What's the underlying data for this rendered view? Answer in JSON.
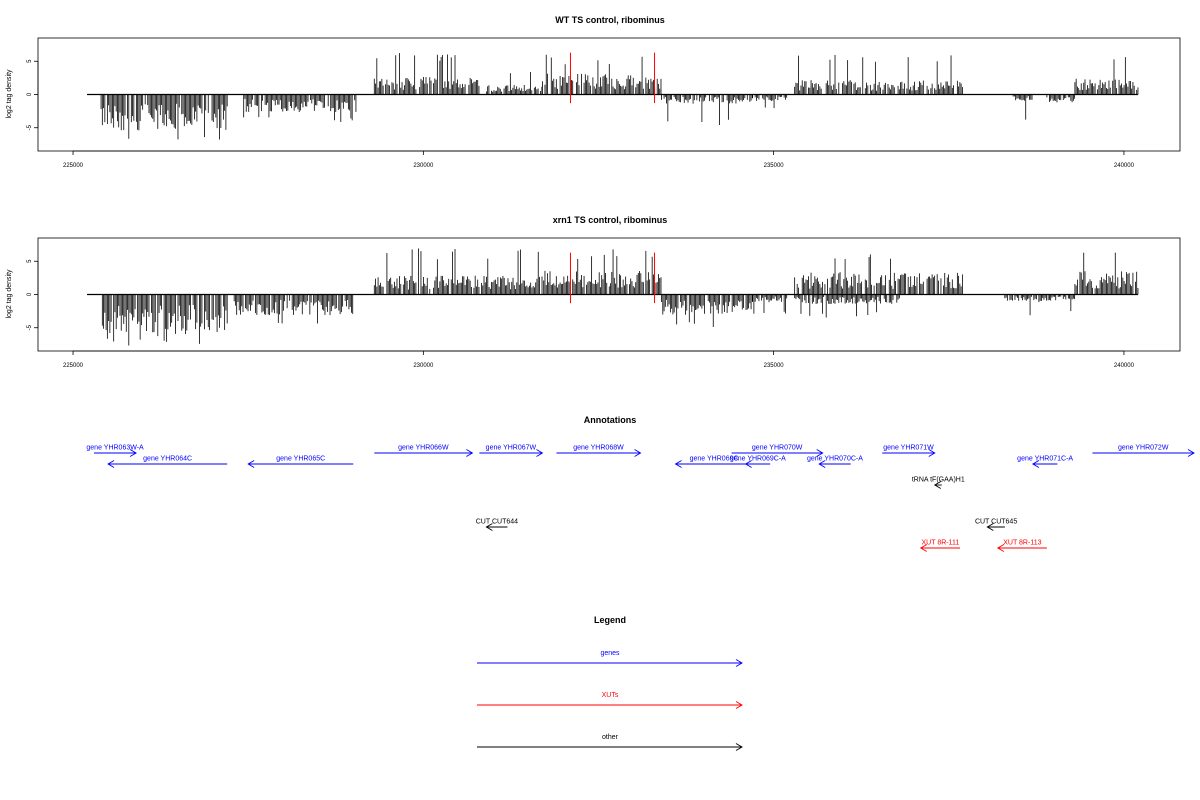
{
  "chart_data": [
    {
      "type": "bar",
      "title": "WT TS control, ribominus",
      "ylabel": "log2 tag density",
      "xlim": [
        224500,
        240800
      ],
      "ylim": [
        -8.5,
        8.5
      ],
      "x_ticks": [
        225000,
        230000,
        235000,
        240000
      ],
      "y_ticks": [
        -5,
        0,
        5
      ],
      "grid": false,
      "baseline": {
        "from": 225200,
        "to": 240200,
        "y": 0
      },
      "markers": [
        232100,
        233300
      ],
      "marker_color": "#ff0000",
      "bar_color": "#000000",
      "segments": [
        {
          "from": 225400,
          "to": 227200,
          "sign": -1,
          "typical": 4.5,
          "peak": 7.5
        },
        {
          "from": 227400,
          "to": 229050,
          "sign": -1,
          "typical": 2.2,
          "peak": 4.5
        },
        {
          "from": 229300,
          "to": 230800,
          "sign": 1,
          "typical": 2.2,
          "peak": 6.5
        },
        {
          "from": 230900,
          "to": 231700,
          "sign": 1,
          "typical": 1.2,
          "peak": 3.5
        },
        {
          "from": 231700,
          "to": 233400,
          "sign": 1,
          "typical": 2.6,
          "peak": 6.0
        },
        {
          "from": 233400,
          "to": 234700,
          "sign": -1,
          "typical": 1.2,
          "peak": 5.0
        },
        {
          "from": 234700,
          "to": 235200,
          "sign": -1,
          "typical": 0.8,
          "peak": 2.5
        },
        {
          "from": 235300,
          "to": 237700,
          "sign": 1,
          "typical": 1.8,
          "peak": 6.0
        },
        {
          "from": 238400,
          "to": 238700,
          "sign": -1,
          "typical": 0.8,
          "peak": 4.0
        },
        {
          "from": 238900,
          "to": 239300,
          "sign": -1,
          "typical": 1.0,
          "peak": 3.0
        },
        {
          "from": 239300,
          "to": 240200,
          "sign": 1,
          "typical": 2.0,
          "peak": 6.5
        }
      ]
    },
    {
      "type": "bar",
      "title": "xrn1 TS control, ribominus",
      "ylabel": "log2 tag density",
      "xlim": [
        224500,
        240800
      ],
      "ylim": [
        -8.5,
        8.5
      ],
      "x_ticks": [
        225000,
        230000,
        235000,
        240000
      ],
      "y_ticks": [
        -5,
        0,
        5
      ],
      "grid": false,
      "baseline": {
        "from": 225200,
        "to": 240200,
        "y": 0
      },
      "markers": [
        232100,
        233300
      ],
      "marker_color": "#ff0000",
      "bar_color": "#000000",
      "segments": [
        {
          "from": 225400,
          "to": 227200,
          "sign": -1,
          "typical": 5.0,
          "peak": 8.0
        },
        {
          "from": 227300,
          "to": 229000,
          "sign": -1,
          "typical": 2.6,
          "peak": 5.0
        },
        {
          "from": 229300,
          "to": 231700,
          "sign": 1,
          "typical": 2.4,
          "peak": 7.0
        },
        {
          "from": 231700,
          "to": 233400,
          "sign": 1,
          "typical": 3.0,
          "peak": 7.0
        },
        {
          "from": 233400,
          "to": 234700,
          "sign": -1,
          "typical": 2.6,
          "peak": 5.0
        },
        {
          "from": 234700,
          "to": 235200,
          "sign": -1,
          "typical": 1.0,
          "peak": 3.0
        },
        {
          "from": 235300,
          "to": 237700,
          "sign": 1,
          "typical": 2.8,
          "peak": 7.0
        },
        {
          "from": 235300,
          "to": 236800,
          "sign": -1,
          "typical": 1.2,
          "peak": 3.5
        },
        {
          "from": 238300,
          "to": 238900,
          "sign": -1,
          "typical": 1.0,
          "peak": 3.5
        },
        {
          "from": 238900,
          "to": 239300,
          "sign": -1,
          "typical": 0.8,
          "peak": 3.0
        },
        {
          "from": 239300,
          "to": 240200,
          "sign": 1,
          "typical": 3.0,
          "peak": 8.0
        }
      ]
    }
  ],
  "annotations": {
    "title": "Annotations",
    "items": [
      {
        "label": "gene YHR063W-A",
        "kind": "genes",
        "from": 225300,
        "to": 225900,
        "strand": "+",
        "row": 0
      },
      {
        "label": "gene YHR064C",
        "kind": "genes",
        "from": 225500,
        "to": 227200,
        "strand": "-",
        "row": 1
      },
      {
        "label": "gene YHR065C",
        "kind": "genes",
        "from": 227500,
        "to": 229000,
        "strand": "-",
        "row": 1
      },
      {
        "label": "gene YHR066W",
        "kind": "genes",
        "from": 229300,
        "to": 230700,
        "strand": "+",
        "row": 0
      },
      {
        "label": "gene YHR067W",
        "kind": "genes",
        "from": 230800,
        "to": 231700,
        "strand": "+",
        "row": 0
      },
      {
        "label": "gene YHR068W",
        "kind": "genes",
        "from": 231900,
        "to": 233100,
        "strand": "+",
        "row": 0
      },
      {
        "label": "gene YHR069C",
        "kind": "genes",
        "from": 233600,
        "to": 234700,
        "strand": "-",
        "row": 1
      },
      {
        "label": "gene YHR069C-A",
        "kind": "genes",
        "from": 234600,
        "to": 234950,
        "strand": "-",
        "row": 1
      },
      {
        "label": "gene YHR070W",
        "kind": "genes",
        "from": 234400,
        "to": 235700,
        "strand": "+",
        "row": 0
      },
      {
        "label": "gene YHR070C-A",
        "kind": "genes",
        "from": 235650,
        "to": 236100,
        "strand": "-",
        "row": 1
      },
      {
        "label": "gene YHR071W",
        "kind": "genes",
        "from": 236550,
        "to": 237300,
        "strand": "+",
        "row": 0
      },
      {
        "label": "gene YHR071C-A",
        "kind": "genes",
        "from": 238700,
        "to": 239050,
        "strand": "-",
        "row": 1
      },
      {
        "label": "gene YHR072W",
        "kind": "genes",
        "from": 239550,
        "to": 241000,
        "strand": "+",
        "row": 0
      },
      {
        "label": "tRNA tF(GAA)H1",
        "kind": "other",
        "from": 237300,
        "to": 237400,
        "strand": "-",
        "row": 2
      },
      {
        "label": "CUT CUT644",
        "kind": "other",
        "from": 230900,
        "to": 231200,
        "strand": "-",
        "row": 3
      },
      {
        "label": "CUT CUT645",
        "kind": "other",
        "from": 238050,
        "to": 238300,
        "strand": "-",
        "row": 3
      },
      {
        "label": "XUT 8R-111",
        "kind": "XUTs",
        "from": 237100,
        "to": 237660,
        "strand": "-",
        "row": 4
      },
      {
        "label": "XUT 8R-113",
        "kind": "XUTs",
        "from": 238200,
        "to": 238900,
        "strand": "-",
        "row": 4
      }
    ]
  },
  "legend": {
    "title": "Legend",
    "entries": [
      {
        "label": "genes",
        "color": "#0000ff"
      },
      {
        "label": "XUTs",
        "color": "#ff0000"
      },
      {
        "label": "other",
        "color": "#000000"
      }
    ]
  }
}
